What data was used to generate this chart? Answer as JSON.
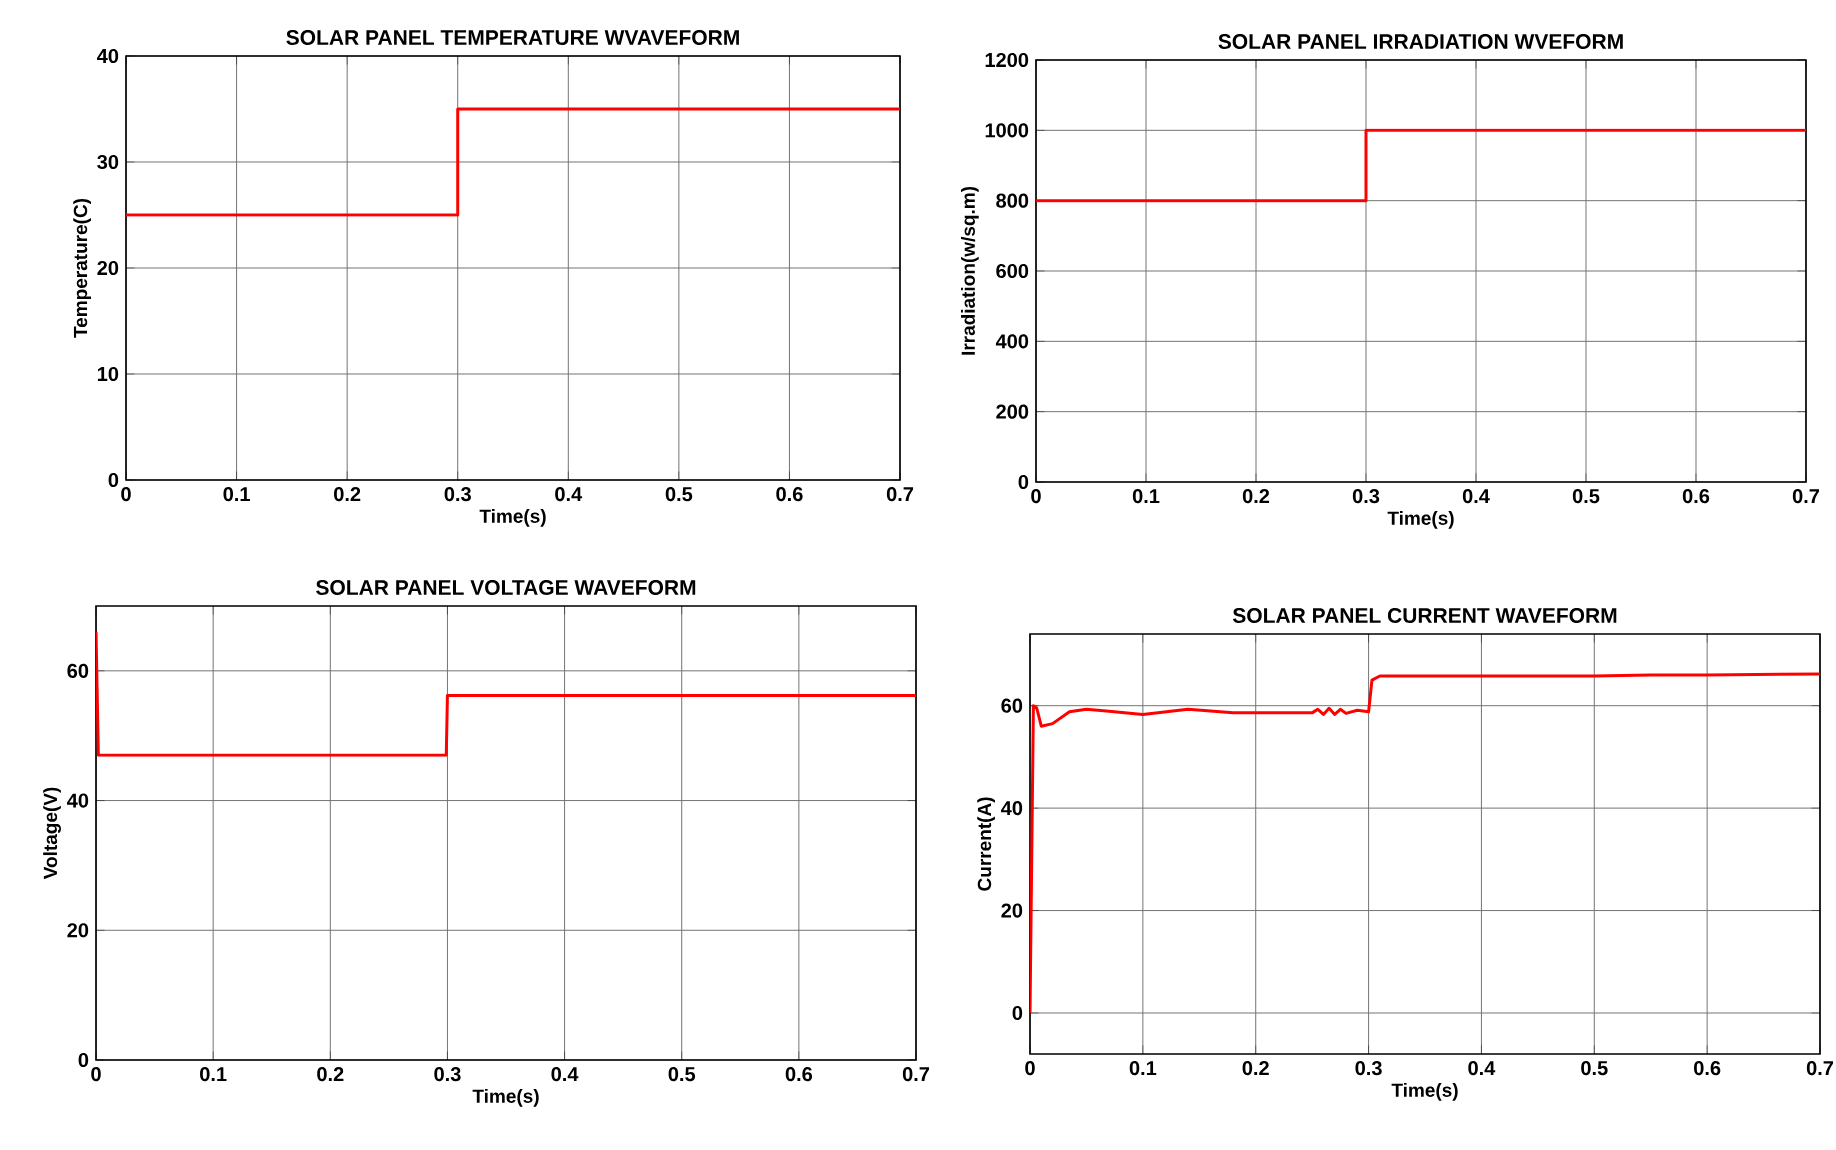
{
  "chart_data": [
    {
      "type": "step",
      "title": "SOLAR PANEL TEMPERATURE WVAVEFORM",
      "xlabel": "Time(s)",
      "ylabel": "Temperature(C)",
      "x": [
        0,
        0.3,
        0.7
      ],
      "values": [
        25,
        35,
        35
      ],
      "color": "#ff0000",
      "xlim": [
        0,
        0.7
      ],
      "ylim": [
        0,
        40
      ],
      "xticks": [
        0,
        0.1,
        0.2,
        0.3,
        0.4,
        0.5,
        0.6,
        0.7
      ],
      "yticks": [
        0,
        10,
        20,
        30,
        40
      ],
      "grid": true
    },
    {
      "type": "step",
      "title": "SOLAR PANEL IRRADIATION WVEFORM",
      "xlabel": "Time(s)",
      "ylabel": "Irradiation(w/sq.m)",
      "x": [
        0,
        0.3,
        0.7
      ],
      "values": [
        800,
        1000,
        1000
      ],
      "color": "#ff0000",
      "xlim": [
        0,
        0.7
      ],
      "ylim": [
        0,
        1200
      ],
      "xticks": [
        0,
        0.1,
        0.2,
        0.3,
        0.4,
        0.5,
        0.6,
        0.7
      ],
      "yticks": [
        0,
        200,
        400,
        600,
        800,
        1000,
        1200
      ],
      "grid": true
    },
    {
      "type": "line",
      "title": "SOLAR PANEL VOLTAGE WAVEFORM",
      "xlabel": "Time(s)",
      "ylabel": "Voltage(V)",
      "x": [
        0,
        0.002,
        0.1,
        0.2,
        0.299,
        0.3,
        0.4,
        0.5,
        0.6,
        0.7
      ],
      "values": [
        66,
        47,
        47,
        47,
        47,
        56.2,
        56.2,
        56.2,
        56.2,
        56.2
      ],
      "color": "#ff0000",
      "xlim": [
        0,
        0.7
      ],
      "ylim": [
        0,
        70
      ],
      "xticks": [
        0,
        0.1,
        0.2,
        0.3,
        0.4,
        0.5,
        0.6,
        0.7
      ],
      "yticks": [
        0,
        20,
        40,
        60
      ],
      "grid": true
    },
    {
      "type": "line",
      "title": "SOLAR PANEL CURRENT WAVEFORM",
      "xlabel": "Time(s)",
      "ylabel": "Current(A)",
      "x": [
        0,
        0.003,
        0.006,
        0.01,
        0.02,
        0.035,
        0.05,
        0.07,
        0.1,
        0.14,
        0.18,
        0.25,
        0.255,
        0.26,
        0.265,
        0.27,
        0.275,
        0.28,
        0.29,
        0.3,
        0.303,
        0.31,
        0.4,
        0.5,
        0.55,
        0.6,
        0.7
      ],
      "values": [
        0,
        60,
        59.5,
        56,
        56.5,
        58.8,
        59.3,
        58.9,
        58.3,
        59.3,
        58.6,
        58.6,
        59.3,
        58.3,
        59.5,
        58.3,
        59.3,
        58.5,
        59.1,
        58.8,
        65,
        65.8,
        65.8,
        65.8,
        66,
        66,
        66.2
      ],
      "color": "#ff0000",
      "xlim": [
        0,
        0.7
      ],
      "ylim": [
        -8,
        74
      ],
      "xticks": [
        0,
        0.1,
        0.2,
        0.3,
        0.4,
        0.5,
        0.6,
        0.7
      ],
      "yticks": [
        0,
        20,
        40,
        60
      ],
      "grid": true
    }
  ]
}
